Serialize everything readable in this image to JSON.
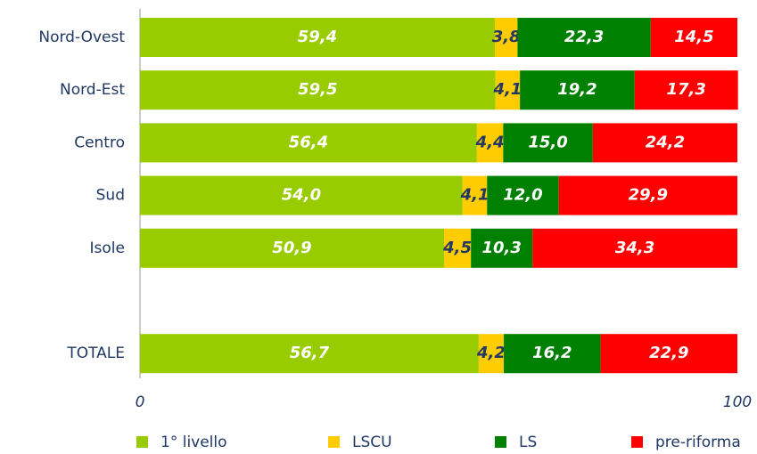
{
  "chart_data": {
    "type": "stacked-bar-horizontal",
    "categories": [
      "Nord-Ovest",
      "Nord-Est",
      "Centro",
      "Sud",
      "Isole",
      null,
      "TOTALE"
    ],
    "series": [
      {
        "name": "1° livello",
        "color": "#99cc00",
        "label_color": "#ffffff",
        "values": [
          59.4,
          59.5,
          56.4,
          54.0,
          50.9,
          null,
          56.7
        ],
        "value_labels": [
          "59,4",
          "59,5",
          "56,4",
          "54,0",
          "50,9",
          null,
          "56,7"
        ]
      },
      {
        "name": "LSCU",
        "color": "#ffcc00",
        "label_color": "#1f3864",
        "values": [
          3.8,
          4.1,
          4.4,
          4.1,
          4.5,
          null,
          4.2
        ],
        "value_labels": [
          "3,8",
          "4,1",
          "4,4",
          "4,1",
          "4,5",
          null,
          "4,2"
        ]
      },
      {
        "name": "LS",
        "color": "#008000",
        "label_color": "#ffffff",
        "values": [
          22.3,
          19.2,
          15.0,
          12.0,
          10.3,
          null,
          16.2
        ],
        "value_labels": [
          "22,3",
          "19,2",
          "15,0",
          "12,0",
          "10,3",
          null,
          "16,2"
        ]
      },
      {
        "name": "pre-riforma",
        "color": "#ff0000",
        "label_color": "#ffffff",
        "values": [
          14.5,
          17.3,
          24.2,
          29.9,
          34.3,
          null,
          22.9
        ],
        "value_labels": [
          "14,5",
          "17,3",
          "24,2",
          "29,9",
          "34,3",
          null,
          "22,9"
        ]
      }
    ],
    "xlim": [
      0,
      100
    ],
    "xticks": [
      0,
      100
    ],
    "legend": "bottom"
  }
}
